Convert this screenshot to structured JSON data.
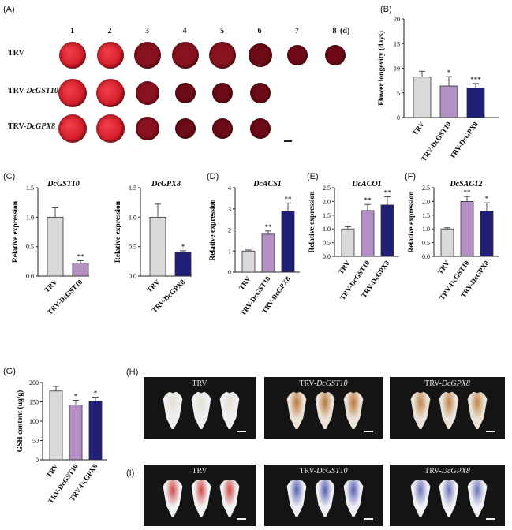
{
  "panel_labels": {
    "a": "(A)",
    "b": "(B)",
    "c": "(C)",
    "d": "(D)",
    "e": "(E)",
    "f": "(F)",
    "g": "(G)",
    "h": "(H)",
    "i": "(I)"
  },
  "panel_a": {
    "days": [
      "1",
      "2",
      "3",
      "4",
      "5",
      "6",
      "7",
      "8"
    ],
    "day_unit": "(d)",
    "rows": [
      {
        "label_prefix": "TRV",
        "label_gene": "",
        "flowers": 8
      },
      {
        "label_prefix": "TRV-",
        "label_gene": "DcGST10",
        "flowers": 6
      },
      {
        "label_prefix": "TRV-",
        "label_gene": "DcGPX8",
        "flowers": 6
      }
    ],
    "colors": {
      "fresh": "#d81e2c",
      "dark": "#6e0b16",
      "wilt": "#8a1220"
    }
  },
  "colors": {
    "TRV": "#d9d9d9",
    "DcGST10": "#b48fc4",
    "DcGPX8": "#1f1f78",
    "edge": "#333333"
  },
  "chart_data": [
    {
      "id": "B",
      "type": "bar",
      "title": "",
      "categories": [
        "TRV",
        "TRV-DcGST10",
        "TRV-DcGPX8"
      ],
      "values": [
        8.2,
        6.4,
        6.0
      ],
      "errors": [
        1.2,
        1.9,
        0.9
      ],
      "significance": [
        "",
        "*",
        "***"
      ],
      "ylabel": "Flower longevity (days)",
      "ylim": [
        0,
        20
      ],
      "yticks": [
        "0",
        "5",
        "10",
        "15",
        "20"
      ]
    },
    {
      "id": "C1",
      "type": "bar",
      "title": "DcGST10",
      "categories": [
        "TRV",
        "TRV-DcGST10"
      ],
      "values": [
        1.0,
        0.22
      ],
      "errors": [
        0.16,
        0.04
      ],
      "significance": [
        "",
        "**"
      ],
      "ylabel": "Relative expression",
      "ylim": [
        0,
        1.5
      ],
      "yticks": [
        "0.0",
        "0.5",
        "1.0",
        "1.5"
      ]
    },
    {
      "id": "C2",
      "type": "bar",
      "title": "DcGPX8",
      "categories": [
        "TRV",
        "TRV-DcGPX8"
      ],
      "values": [
        1.0,
        0.4
      ],
      "errors": [
        0.22,
        0.03
      ],
      "significance": [
        "",
        "*"
      ],
      "ylabel": "Relative expression",
      "ylim": [
        0,
        1.5
      ],
      "yticks": [
        "0.0",
        "0.5",
        "1.0",
        "1.5"
      ]
    },
    {
      "id": "D",
      "type": "bar",
      "title": "DcACS1",
      "categories": [
        "TRV",
        "TRV-DcGST10",
        "TRV-DcGPX8"
      ],
      "values": [
        1.0,
        1.8,
        2.9
      ],
      "errors": [
        0.05,
        0.15,
        0.38
      ],
      "significance": [
        "",
        "**",
        "**"
      ],
      "ylabel": "Relative expression",
      "ylim": [
        0,
        4
      ],
      "yticks": [
        "0",
        "1",
        "2",
        "3",
        "4"
      ]
    },
    {
      "id": "E",
      "type": "bar",
      "title": "DcACO1",
      "categories": [
        "TRV",
        "TRV-DcGST10",
        "TRV-DcGPX8"
      ],
      "values": [
        1.0,
        1.67,
        1.87
      ],
      "errors": [
        0.08,
        0.22,
        0.3
      ],
      "significance": [
        "",
        "**",
        "**"
      ],
      "ylabel": "Relative expression",
      "ylim": [
        0,
        2.5
      ],
      "yticks": [
        "0.0",
        "0.5",
        "1.0",
        "1.5",
        "2.0",
        "2.5"
      ]
    },
    {
      "id": "F",
      "type": "bar",
      "title": "DcSAG12",
      "categories": [
        "TRV",
        "TRV-DcGST10",
        "TRV-DcGPX8"
      ],
      "values": [
        1.0,
        2.0,
        1.65
      ],
      "errors": [
        0.04,
        0.18,
        0.3
      ],
      "significance": [
        "",
        "**",
        "*"
      ],
      "ylabel": "Relative expression",
      "ylim": [
        0,
        2.5
      ],
      "yticks": [
        "0.0",
        "0.5",
        "1.0",
        "1.5",
        "2.0",
        "2.5"
      ]
    },
    {
      "id": "G",
      "type": "bar",
      "title": "",
      "categories": [
        "TRV",
        "TRV-DcGST10",
        "TRV-DcGPX8"
      ],
      "values": [
        178,
        142,
        152
      ],
      "errors": [
        12,
        12,
        10
      ],
      "significance": [
        "",
        "*",
        "*"
      ],
      "ylabel": "GSH content (ug/g)",
      "ylim": [
        0,
        200
      ],
      "yticks": [
        "0",
        "50",
        "100",
        "150",
        "200"
      ]
    }
  ],
  "panel_h": {
    "groups": [
      {
        "prefix": "TRV",
        "gene": "",
        "petal": "#efefef",
        "stain": "#e6e0d6"
      },
      {
        "prefix": "TRV-",
        "gene": "DcGST10",
        "petal": "#ece3d8",
        "stain": "#b8763a"
      },
      {
        "prefix": "TRV-",
        "gene": "DcGPX8",
        "petal": "#ece3d8",
        "stain": "#c0834a"
      }
    ]
  },
  "panel_i": {
    "groups": [
      {
        "prefix": "TRV",
        "gene": "",
        "petal": "#f2f2f2",
        "stain": "#d04848"
      },
      {
        "prefix": "TRV-",
        "gene": "DcGST10",
        "petal": "#eeeef4",
        "stain": "#5460b0"
      },
      {
        "prefix": "TRV-",
        "gene": "DcGPX8",
        "petal": "#f0f0f6",
        "stain": "#6a74b8"
      }
    ]
  }
}
